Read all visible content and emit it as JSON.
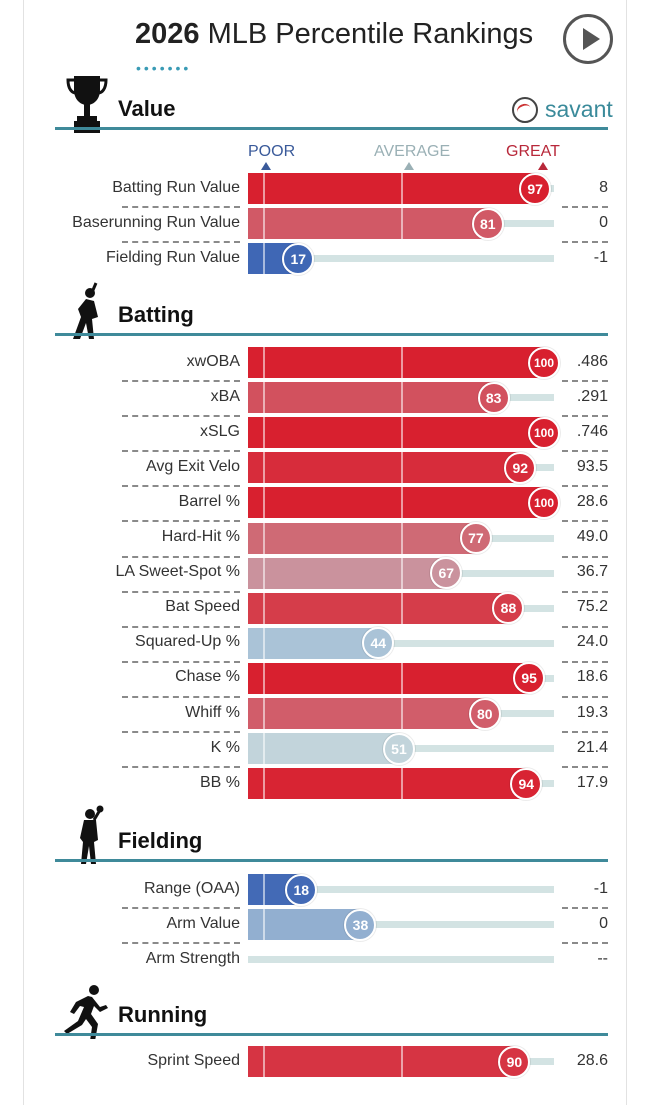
{
  "header": {
    "year": "2026",
    "title_rest": "MLB Percentile Rankings",
    "dots": "•••••••"
  },
  "brand": {
    "name": "savant",
    "icon": "baseball-icon"
  },
  "axis": {
    "poor": "POOR",
    "average": "AVERAGE",
    "great": "GREAT"
  },
  "colors": {
    "great": "#d8202f",
    "poor": "#3f67b5",
    "average": "#c2d8df",
    "section_line": "#3f8a9a",
    "track": "#d3e3e3"
  },
  "chart_data": {
    "type": "bar",
    "title": "2026 MLB Percentile Rankings",
    "scale": [
      0,
      100
    ],
    "sections": [
      {
        "name": "Value",
        "icon": "trophy-icon",
        "rows": [
          {
            "label": "Batting Run Value",
            "percentile": 97,
            "value": "8"
          },
          {
            "label": "Baserunning Run Value",
            "percentile": 81,
            "value": "0"
          },
          {
            "label": "Fielding Run Value",
            "percentile": 17,
            "value": "-1"
          }
        ]
      },
      {
        "name": "Batting",
        "icon": "batter-icon",
        "rows": [
          {
            "label": "xwOBA",
            "percentile": 100,
            "value": ".486"
          },
          {
            "label": "xBA",
            "percentile": 83,
            "value": ".291"
          },
          {
            "label": "xSLG",
            "percentile": 100,
            "value": ".746"
          },
          {
            "label": "Avg Exit Velo",
            "percentile": 92,
            "value": "93.5"
          },
          {
            "label": "Barrel %",
            "percentile": 100,
            "value": "28.6"
          },
          {
            "label": "Hard-Hit %",
            "percentile": 77,
            "value": "49.0"
          },
          {
            "label": "LA Sweet-Spot %",
            "percentile": 67,
            "value": "36.7"
          },
          {
            "label": "Bat Speed",
            "percentile": 88,
            "value": "75.2"
          },
          {
            "label": "Squared-Up %",
            "percentile": 44,
            "value": "24.0"
          },
          {
            "label": "Chase %",
            "percentile": 95,
            "value": "18.6"
          },
          {
            "label": "Whiff %",
            "percentile": 80,
            "value": "19.3"
          },
          {
            "label": "K %",
            "percentile": 51,
            "value": "21.4"
          },
          {
            "label": "BB %",
            "percentile": 94,
            "value": "17.9"
          }
        ]
      },
      {
        "name": "Fielding",
        "icon": "fielder-icon",
        "rows": [
          {
            "label": "Range (OAA)",
            "percentile": 18,
            "value": "-1"
          },
          {
            "label": "Arm Value",
            "percentile": 38,
            "value": "0"
          },
          {
            "label": "Arm Strength",
            "percentile": null,
            "value": "--"
          }
        ]
      },
      {
        "name": "Running",
        "icon": "runner-icon",
        "rows": [
          {
            "label": "Sprint Speed",
            "percentile": 90,
            "value": "28.6"
          }
        ]
      }
    ]
  }
}
